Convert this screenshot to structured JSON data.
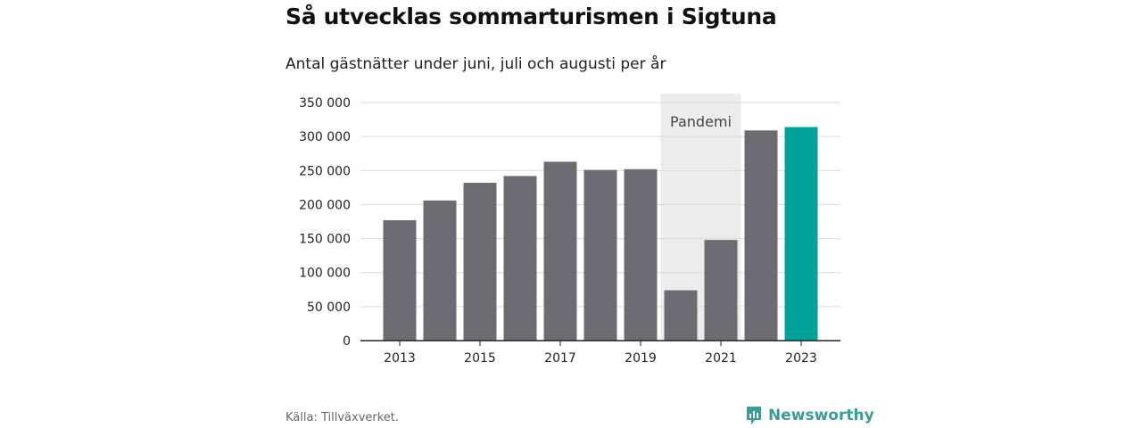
{
  "title": "Så utvecklas sommarturismen i Sigtuna",
  "subtitle": "Antal gästnätter under juni, juli och augusti per år",
  "source": "Källa: Tillväxverket.",
  "brand": "Newsworthy",
  "colors": {
    "bar": "#6d6c72",
    "highlight": "#00a29a",
    "pandemic_band": "#ececec",
    "grid": "#d9d9d9",
    "brand": "#3a9c94"
  },
  "chart_data": {
    "type": "bar",
    "categories": [
      "2013",
      "2014",
      "2015",
      "2016",
      "2017",
      "2018",
      "2019",
      "2020",
      "2021",
      "2022",
      "2023"
    ],
    "values": [
      177000,
      206000,
      232000,
      242000,
      263000,
      251000,
      252000,
      74000,
      148000,
      309000,
      314000
    ],
    "highlight_category": "2023",
    "ylim": [
      0,
      350000
    ],
    "yticks": [
      0,
      50000,
      100000,
      150000,
      200000,
      250000,
      300000,
      350000
    ],
    "ytick_labels": [
      "0",
      "50 000",
      "100 000",
      "150 000",
      "200 000",
      "250 000",
      "300 000",
      "350 000"
    ],
    "xtick_labels": [
      "2013",
      "2015",
      "2017",
      "2019",
      "2021",
      "2023"
    ],
    "grid": true,
    "annotation": {
      "label": "Pandemi",
      "from": "2020",
      "to": "2021"
    }
  }
}
